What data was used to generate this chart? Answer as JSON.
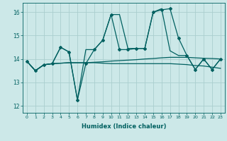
{
  "xlabel": "Humidex (Indice chaleur)",
  "xlim": [
    -0.5,
    23.5
  ],
  "ylim": [
    11.7,
    16.4
  ],
  "yticks": [
    12,
    13,
    14,
    15,
    16
  ],
  "xticks": [
    0,
    1,
    2,
    3,
    4,
    5,
    6,
    7,
    8,
    9,
    10,
    11,
    12,
    13,
    14,
    15,
    16,
    17,
    18,
    19,
    20,
    21,
    22,
    23
  ],
  "bg_color": "#cce8e8",
  "grid_color": "#aacece",
  "line_color": "#006060",
  "marker": "D",
  "marker_size": 2.0,
  "line_width": 0.9,
  "series": {
    "main": {
      "x": [
        0,
        1,
        2,
        3,
        4,
        5,
        6,
        7,
        8,
        9,
        10,
        11,
        12,
        13,
        14,
        15,
        16,
        17,
        18,
        19,
        20,
        21,
        22,
        23
      ],
      "y": [
        13.9,
        13.5,
        13.75,
        13.8,
        14.5,
        14.3,
        12.25,
        13.8,
        14.4,
        14.8,
        15.9,
        14.4,
        14.4,
        14.45,
        14.45,
        16.0,
        16.1,
        16.15,
        14.9,
        14.15,
        13.55,
        14.0,
        13.55,
        14.0
      ]
    },
    "trend_upper": {
      "x": [
        0,
        1,
        2,
        3,
        4,
        5,
        6,
        7,
        8,
        9,
        10,
        11,
        12,
        13,
        14,
        15,
        16,
        17,
        18,
        19,
        20,
        21,
        22,
        23
      ],
      "y": [
        13.9,
        13.5,
        13.75,
        13.8,
        13.82,
        13.84,
        13.84,
        13.84,
        13.86,
        13.88,
        13.91,
        13.93,
        13.95,
        13.97,
        14.0,
        14.02,
        14.05,
        14.07,
        14.07,
        14.07,
        14.05,
        14.03,
        14.02,
        14.0
      ]
    },
    "trend_lower": {
      "x": [
        0,
        1,
        2,
        3,
        4,
        5,
        6,
        7,
        8,
        9,
        10,
        11,
        12,
        13,
        14,
        15,
        16,
        17,
        18,
        19,
        20,
        21,
        22,
        23
      ],
      "y": [
        13.9,
        13.5,
        13.75,
        13.8,
        13.82,
        13.84,
        13.84,
        13.84,
        13.84,
        13.82,
        13.8,
        13.8,
        13.8,
        13.8,
        13.8,
        13.8,
        13.8,
        13.8,
        13.78,
        13.76,
        13.72,
        13.7,
        13.65,
        13.6
      ]
    },
    "secondary": {
      "x": [
        0,
        1,
        2,
        3,
        4,
        5,
        6,
        7,
        8,
        9,
        10,
        11,
        12,
        13,
        14,
        15,
        16,
        17,
        18,
        19,
        20,
        21,
        22,
        23
      ],
      "y": [
        13.9,
        13.5,
        13.75,
        13.8,
        14.5,
        14.3,
        12.25,
        14.4,
        14.4,
        14.8,
        15.9,
        15.9,
        14.45,
        14.45,
        14.45,
        16.0,
        16.15,
        14.35,
        14.15,
        14.15,
        13.55,
        14.0,
        13.55,
        14.0
      ]
    }
  }
}
